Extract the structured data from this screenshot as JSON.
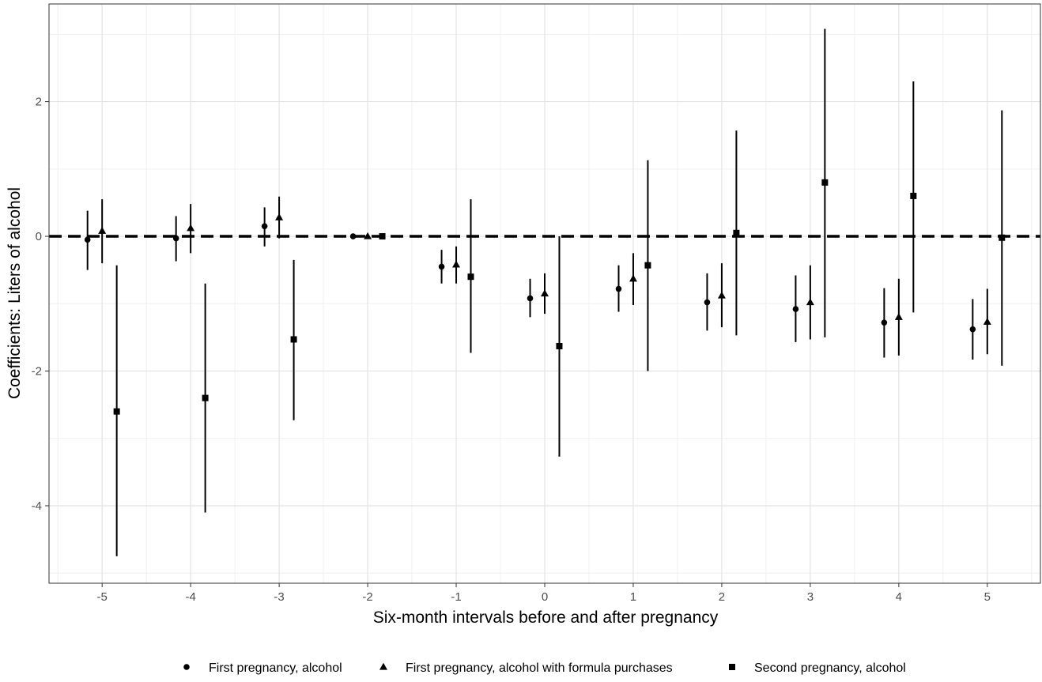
{
  "chart_data": {
    "type": "scatter",
    "title": "",
    "xlabel": "Six-month intervals before and after pregnancy",
    "ylabel": "Coefficients: Liters of alcohol",
    "xlim": [
      -5.6,
      5.6
    ],
    "ylim": [
      -5.15,
      3.45
    ],
    "x_ticks": [
      -5,
      -4,
      -3,
      -2,
      -1,
      0,
      1,
      2,
      3,
      4,
      5
    ],
    "x_tick_labels": [
      "-5",
      "-4",
      "-3",
      "-2",
      "-1",
      "0",
      "1",
      "2",
      "3",
      "4",
      "5"
    ],
    "y_ticks": [
      -4,
      -2,
      0,
      2
    ],
    "y_tick_labels": [
      "-4",
      "-2",
      "0",
      "2"
    ],
    "reference_line": {
      "y": 0,
      "style": "dashed"
    },
    "grid": true,
    "legend_position": "bottom",
    "series": [
      {
        "name": "First pregnancy, alcohol",
        "marker": "circle",
        "points": [
          {
            "x": -5,
            "y": -0.05,
            "lo": -0.5,
            "hi": 0.38
          },
          {
            "x": -4,
            "y": -0.03,
            "lo": -0.37,
            "hi": 0.3
          },
          {
            "x": -3,
            "y": 0.15,
            "lo": -0.15,
            "hi": 0.43
          },
          {
            "x": -2,
            "y": 0.0,
            "lo": 0.0,
            "hi": 0.0
          },
          {
            "x": -1,
            "y": -0.45,
            "lo": -0.7,
            "hi": -0.2
          },
          {
            "x": 0,
            "y": -0.92,
            "lo": -1.2,
            "hi": -0.63
          },
          {
            "x": 1,
            "y": -0.78,
            "lo": -1.12,
            "hi": -0.43
          },
          {
            "x": 2,
            "y": -0.98,
            "lo": -1.4,
            "hi": -0.55
          },
          {
            "x": 3,
            "y": -1.08,
            "lo": -1.57,
            "hi": -0.58
          },
          {
            "x": 4,
            "y": -1.28,
            "lo": -1.8,
            "hi": -0.77
          },
          {
            "x": 5,
            "y": -1.38,
            "lo": -1.83,
            "hi": -0.93
          }
        ]
      },
      {
        "name": "First pregnancy, alcohol with formula purchases",
        "marker": "triangle",
        "points": [
          {
            "x": -5,
            "y": 0.08,
            "lo": -0.4,
            "hi": 0.55
          },
          {
            "x": -4,
            "y": 0.12,
            "lo": -0.25,
            "hi": 0.48
          },
          {
            "x": -3,
            "y": 0.28,
            "lo": -0.03,
            "hi": 0.59
          },
          {
            "x": -2,
            "y": 0.0,
            "lo": 0.0,
            "hi": 0.0
          },
          {
            "x": -1,
            "y": -0.42,
            "lo": -0.7,
            "hi": -0.15
          },
          {
            "x": 0,
            "y": -0.85,
            "lo": -1.15,
            "hi": -0.55
          },
          {
            "x": 1,
            "y": -0.63,
            "lo": -1.02,
            "hi": -0.25
          },
          {
            "x": 2,
            "y": -0.88,
            "lo": -1.35,
            "hi": -0.4
          },
          {
            "x": 3,
            "y": -0.98,
            "lo": -1.53,
            "hi": -0.43
          },
          {
            "x": 4,
            "y": -1.2,
            "lo": -1.77,
            "hi": -0.63
          },
          {
            "x": 5,
            "y": -1.27,
            "lo": -1.75,
            "hi": -0.78
          }
        ]
      },
      {
        "name": "Second pregnancy, alcohol",
        "marker": "square",
        "points": [
          {
            "x": -5,
            "y": -2.6,
            "lo": -4.75,
            "hi": -0.43
          },
          {
            "x": -4,
            "y": -2.4,
            "lo": -4.1,
            "hi": -0.7
          },
          {
            "x": -3,
            "y": -1.53,
            "lo": -2.73,
            "hi": -0.35
          },
          {
            "x": -2,
            "y": 0.0,
            "lo": 0.0,
            "hi": 0.0
          },
          {
            "x": -1,
            "y": -0.6,
            "lo": -1.73,
            "hi": 0.55
          },
          {
            "x": 0,
            "y": -1.63,
            "lo": -3.27,
            "hi": 0.0
          },
          {
            "x": 1,
            "y": -0.43,
            "lo": -2.0,
            "hi": 1.13
          },
          {
            "x": 2,
            "y": 0.05,
            "lo": -1.47,
            "hi": 1.57
          },
          {
            "x": 3,
            "y": 0.8,
            "lo": -1.5,
            "hi": 3.08
          },
          {
            "x": 4,
            "y": 0.6,
            "lo": -1.13,
            "hi": 2.3
          },
          {
            "x": 5,
            "y": -0.02,
            "lo": -1.92,
            "hi": 1.87
          }
        ]
      }
    ]
  }
}
